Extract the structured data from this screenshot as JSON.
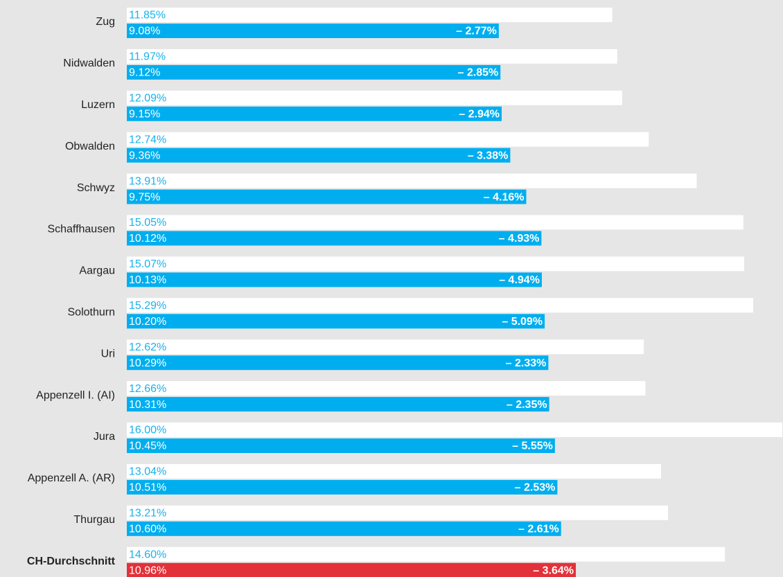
{
  "chart_data": {
    "type": "bar",
    "categories": [
      "Zug",
      "Nidwalden",
      "Luzern",
      "Obwalden",
      "Schwyz",
      "Schaffhausen",
      "Aargau",
      "Solothurn",
      "Uri",
      "Appenzell I. (AI)",
      "Jura",
      "Appenzell A. (AR)",
      "Thurgau",
      "CH-Durchschnitt"
    ],
    "series": [
      {
        "color": "#ffffff",
        "label_color": "#19b2ea",
        "values": [
          11.85,
          11.97,
          12.09,
          12.74,
          13.91,
          15.05,
          15.07,
          15.29,
          12.62,
          12.66,
          16.0,
          13.04,
          13.21,
          14.6
        ],
        "value_labels": [
          "11.85%",
          "11.97%",
          "12.09%",
          "12.74%",
          "13.91%",
          "15.05%",
          "15.07%",
          "15.29%",
          "12.62%",
          "12.66%",
          "16.00%",
          "13.04%",
          "13.21%",
          "14.60%"
        ]
      },
      {
        "colors": [
          "#00aeef",
          "#00aeef",
          "#00aeef",
          "#00aeef",
          "#00aeef",
          "#00aeef",
          "#00aeef",
          "#00aeef",
          "#00aeef",
          "#00aeef",
          "#00aeef",
          "#00aeef",
          "#00aeef",
          "#e3313a"
        ],
        "label_color": "#ffffff",
        "values": [
          9.08,
          9.12,
          9.15,
          9.36,
          9.75,
          10.12,
          10.13,
          10.2,
          10.29,
          10.31,
          10.45,
          10.51,
          10.6,
          10.96
        ],
        "value_labels": [
          "9.08%",
          "9.12%",
          "9.15%",
          "9.36%",
          "9.75%",
          "10.12%",
          "10.13%",
          "10.20%",
          "10.29%",
          "10.31%",
          "10.45%",
          "10.51%",
          "10.60%",
          "10.96%"
        ]
      }
    ],
    "difference_labels": [
      "– 2.77%",
      "– 2.85%",
      "– 2.94%",
      "– 3.38%",
      "– 4.16%",
      "– 4.93%",
      "– 4.94%",
      "– 5.09%",
      "– 2.33%",
      "– 2.35%",
      "– 5.55%",
      "– 2.53%",
      "– 2.61%",
      "– 3.64%"
    ]
  }
}
